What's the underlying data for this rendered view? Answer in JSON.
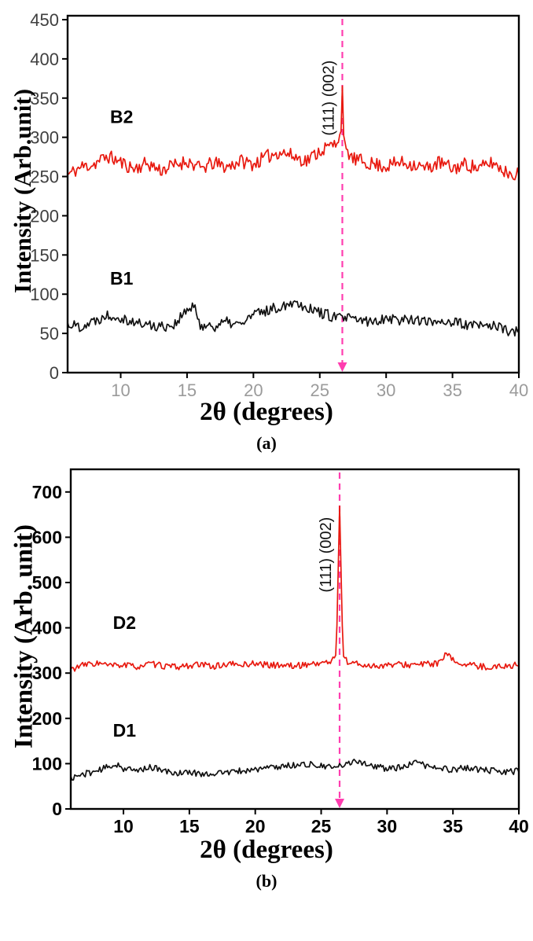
{
  "chart_data": [
    {
      "type": "line",
      "panel_label": "(a)",
      "xlabel": "2θ (degrees)",
      "ylabel": "Intensity (Arb.unit)",
      "xlim": [
        6,
        40
      ],
      "ylim": [
        0,
        455
      ],
      "xticks": [
        10,
        15,
        20,
        25,
        30,
        35,
        40
      ],
      "yticks": [
        0,
        50,
        100,
        150,
        200,
        250,
        300,
        350,
        400,
        450
      ],
      "grid": false,
      "legend": "none",
      "x_tick_style": {
        "color": "#9b9b9b",
        "weight": "normal",
        "size": 22
      },
      "y_tick_style": {
        "color": "#3f3f3f",
        "weight": "normal",
        "size": 22
      },
      "marker_line": {
        "x": 26.7,
        "color": "#ff3daf",
        "style": "dashed",
        "arrow": "down"
      },
      "annotation": {
        "text": "(111)  (002)",
        "x": 26.05,
        "y": 302,
        "rotation": -90
      },
      "series": [
        {
          "name": "B2",
          "color": "#e8190f",
          "noise": 9,
          "seed": 11,
          "peak_x": 26.7,
          "label_x": 9.2,
          "label_y": 318,
          "anchors": [
            [
              6,
              252
            ],
            [
              7,
              262
            ],
            [
              8,
              266
            ],
            [
              9,
              276
            ],
            [
              10,
              268
            ],
            [
              11,
              260
            ],
            [
              12,
              267
            ],
            [
              13,
              258
            ],
            [
              14,
              264
            ],
            [
              15,
              270
            ],
            [
              16,
              260
            ],
            [
              17,
              267
            ],
            [
              18,
              262
            ],
            [
              19,
              270
            ],
            [
              20,
              266
            ],
            [
              21,
              275
            ],
            [
              22,
              282
            ],
            [
              23,
              276
            ],
            [
              24,
              270
            ],
            [
              25,
              283
            ],
            [
              26,
              290
            ],
            [
              26.4,
              295
            ],
            [
              26.6,
              310
            ],
            [
              26.7,
              365
            ],
            [
              26.8,
              300
            ],
            [
              27,
              285
            ],
            [
              27.5,
              272
            ],
            [
              28,
              270
            ],
            [
              29,
              266
            ],
            [
              30,
              263
            ],
            [
              31,
              268
            ],
            [
              32,
              266
            ],
            [
              33,
              260
            ],
            [
              34,
              268
            ],
            [
              35,
              260
            ],
            [
              36,
              266
            ],
            [
              37,
              260
            ],
            [
              38,
              268
            ],
            [
              39,
              256
            ],
            [
              40,
              253
            ]
          ]
        },
        {
          "name": "B1",
          "color": "#111111",
          "noise": 7,
          "seed": 22,
          "peak_x": null,
          "label_x": 9.2,
          "label_y": 112,
          "anchors": [
            [
              6,
              62
            ],
            [
              7,
              59
            ],
            [
              8,
              66
            ],
            [
              9,
              74
            ],
            [
              10,
              71
            ],
            [
              11,
              64
            ],
            [
              12,
              61
            ],
            [
              13,
              59
            ],
            [
              14,
              61
            ],
            [
              15,
              79
            ],
            [
              15.5,
              84
            ],
            [
              16,
              61
            ],
            [
              17,
              59
            ],
            [
              18,
              64
            ],
            [
              19,
              61
            ],
            [
              20,
              74
            ],
            [
              21,
              79
            ],
            [
              22,
              84
            ],
            [
              23,
              91
            ],
            [
              24,
              84
            ],
            [
              25,
              77
            ],
            [
              26,
              71
            ],
            [
              27,
              69
            ],
            [
              28,
              67
            ],
            [
              29,
              64
            ],
            [
              30,
              71
            ],
            [
              31,
              67
            ],
            [
              32,
              69
            ],
            [
              33,
              64
            ],
            [
              34,
              67
            ],
            [
              35,
              64
            ],
            [
              36,
              61
            ],
            [
              37,
              59
            ],
            [
              38,
              61
            ],
            [
              39,
              54
            ],
            [
              40,
              51
            ]
          ]
        }
      ]
    },
    {
      "type": "line",
      "panel_label": "(b)",
      "xlabel": "2θ (degrees)",
      "ylabel": "Intensity (Arb. unit)",
      "xlim": [
        6,
        40
      ],
      "ylim": [
        0,
        750
      ],
      "xticks": [
        10,
        15,
        20,
        25,
        30,
        35,
        40
      ],
      "yticks": [
        0,
        100,
        200,
        300,
        400,
        500,
        600,
        700
      ],
      "grid": false,
      "legend": "none",
      "x_tick_style": {
        "color": "#000000",
        "weight": "bold",
        "size": 23
      },
      "y_tick_style": {
        "color": "#000000",
        "weight": "bold",
        "size": 23
      },
      "marker_line": {
        "x": 26.4,
        "color": "#ff3daf",
        "style": "dashed",
        "arrow": "down"
      },
      "annotation": {
        "text": "(111)  (002)",
        "x": 25.75,
        "y": 478,
        "rotation": -90
      },
      "series": [
        {
          "name": "D2",
          "color": "#e8190f",
          "noise": 7,
          "seed": 33,
          "peak_x": 26.4,
          "label_x": 9.2,
          "label_y": 398,
          "anchors": [
            [
              6,
              308
            ],
            [
              7,
              318
            ],
            [
              8,
              322
            ],
            [
              9,
              316
            ],
            [
              10,
              318
            ],
            [
              11,
              314
            ],
            [
              12,
              320
            ],
            [
              13,
              316
            ],
            [
              14,
              313
            ],
            [
              15,
              317
            ],
            [
              16,
              318
            ],
            [
              17,
              315
            ],
            [
              18,
              320
            ],
            [
              19,
              318
            ],
            [
              20,
              322
            ],
            [
              21,
              317
            ],
            [
              22,
              318
            ],
            [
              23,
              315
            ],
            [
              24,
              320
            ],
            [
              25,
              322
            ],
            [
              25.8,
              326
            ],
            [
              26.15,
              340
            ],
            [
              26.4,
              668
            ],
            [
              26.65,
              340
            ],
            [
              27,
              324
            ],
            [
              27.5,
              322
            ],
            [
              28,
              318
            ],
            [
              29,
              316
            ],
            [
              30,
              317
            ],
            [
              31,
              319
            ],
            [
              32,
              318
            ],
            [
              33,
              320
            ],
            [
              34,
              322
            ],
            [
              34.5,
              342
            ],
            [
              35,
              328
            ],
            [
              36,
              318
            ],
            [
              37,
              315
            ],
            [
              38,
              313
            ],
            [
              39,
              316
            ],
            [
              40,
              318
            ]
          ]
        },
        {
          "name": "D1",
          "color": "#111111",
          "noise": 7,
          "seed": 44,
          "peak_x": null,
          "label_x": 9.2,
          "label_y": 160,
          "anchors": [
            [
              6,
              68
            ],
            [
              7,
              77
            ],
            [
              8,
              84
            ],
            [
              9,
              94
            ],
            [
              9.5,
              99
            ],
            [
              10,
              89
            ],
            [
              11,
              84
            ],
            [
              12,
              93
            ],
            [
              13,
              84
            ],
            [
              14,
              79
            ],
            [
              15,
              81
            ],
            [
              16,
              77
            ],
            [
              17,
              79
            ],
            [
              18,
              81
            ],
            [
              19,
              84
            ],
            [
              20,
              87
            ],
            [
              21,
              91
            ],
            [
              22,
              94
            ],
            [
              23,
              97
            ],
            [
              24,
              99
            ],
            [
              25,
              94
            ],
            [
              26,
              91
            ],
            [
              27,
              99
            ],
            [
              27.5,
              108
            ],
            [
              28,
              104
            ],
            [
              29,
              94
            ],
            [
              30,
              89
            ],
            [
              31,
              91
            ],
            [
              32,
              99
            ],
            [
              32.5,
              104
            ],
            [
              33,
              94
            ],
            [
              34,
              89
            ],
            [
              35,
              87
            ],
            [
              36,
              91
            ],
            [
              37,
              87
            ],
            [
              38,
              84
            ],
            [
              39,
              81
            ],
            [
              40,
              84
            ]
          ]
        }
      ]
    }
  ]
}
